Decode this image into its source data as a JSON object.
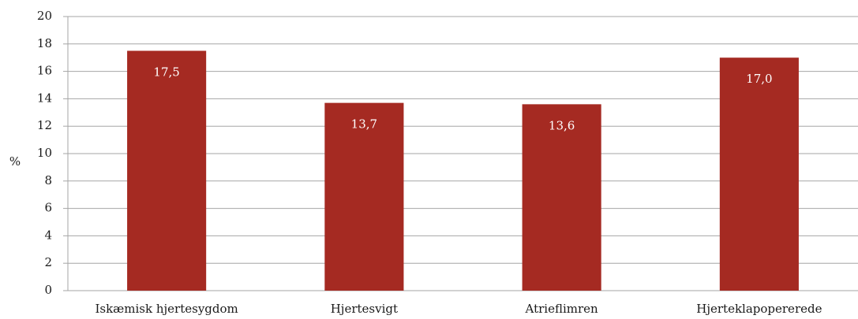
{
  "chart_data": {
    "type": "bar",
    "title": "",
    "xlabel": "",
    "ylabel": "%",
    "categories": [
      "Iskæmisk hjertesygdom",
      "Hjertesvigt",
      "Atrieflimren",
      "Hjerteklapopererede"
    ],
    "values": [
      17.5,
      13.7,
      13.6,
      17.0
    ],
    "data_labels": [
      "17,5",
      "13,7",
      "13,6",
      "17,0"
    ],
    "ylim": [
      0,
      20
    ],
    "yticks": [
      0,
      2,
      4,
      6,
      8,
      10,
      12,
      14,
      16,
      18,
      20
    ],
    "grid": true,
    "legend": "none",
    "bar_color": "#a52a22",
    "grid_color": "#a6a6a6"
  }
}
